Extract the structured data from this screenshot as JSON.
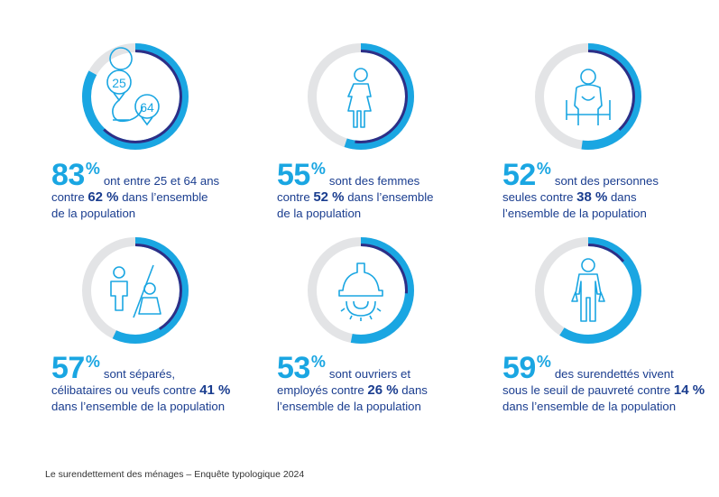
{
  "colors": {
    "track": "#e3e4e6",
    "group": "#1aa6e2",
    "population": "#2e2e86",
    "icon": "#1aa6e2",
    "text": "#1a3d8f"
  },
  "chart_data": {
    "type": "donut",
    "series": [
      {
        "name": "",
        "values": [
          83,
          55,
          52,
          57,
          53,
          59
        ]
      },
      {
        "name": "",
        "values": [
          62,
          52,
          38,
          41,
          26,
          14
        ]
      }
    ],
    "categories": [
      "ont entre 25 et 64 ans",
      "sont des femmes",
      "sont des personnes seules",
      "sont séparés, célibataires ou veufs",
      "sont ouvriers et employés",
      "des surendettés vivent sous le seuil de pauvreté"
    ]
  },
  "stats": [
    {
      "big": "83",
      "pct": "%",
      "icon": "age-range-icon",
      "icon_labels": [
        "25",
        "64"
      ],
      "line1_after": "ont entre 25 et 64 ans",
      "line2_pre": "contre ",
      "line2_bold": "62 %",
      "line2_post": " dans l’ensemble",
      "line3": "de la population"
    },
    {
      "big": "55",
      "pct": "%",
      "icon": "woman-icon",
      "line1_after": "sont des femmes",
      "line2_pre": "contre ",
      "line2_bold": "52 %",
      "line2_post": " dans l’ensemble",
      "line3": "de la population"
    },
    {
      "big": "52",
      "pct": "%",
      "icon": "seated-person-icon",
      "line1_after": "sont des personnes",
      "line2_pre": "seules contre ",
      "line2_bold": "38 %",
      "line2_post": " dans",
      "line3": "l’ensemble de la population"
    },
    {
      "big": "57",
      "pct": "%",
      "icon": "separated-couple-icon",
      "line1_after": "sont séparés,",
      "line2_pre": "célibataires ou veufs contre ",
      "line2_bold": "41 %",
      "line2_post": "",
      "line3": "dans l’ensemble de la population"
    },
    {
      "big": "53",
      "pct": "%",
      "icon": "hard-hat-gear-icon",
      "line1_after": "sont ouvriers et",
      "line2_pre": "employés contre ",
      "line2_bold": "26 %",
      "line2_post": " dans",
      "line3": "l’ensemble de la population"
    },
    {
      "big": "59",
      "pct": "%",
      "icon": "empty-pockets-icon",
      "line1_after": "des surendettés vivent",
      "line2_pre": "sous le seuil de pauvreté contre ",
      "line2_bold": "14 %",
      "line2_post": "",
      "line3": "dans l’ensemble de la population"
    }
  ],
  "footer": "Le surendettement des ménages – Enquête typologique 2024"
}
